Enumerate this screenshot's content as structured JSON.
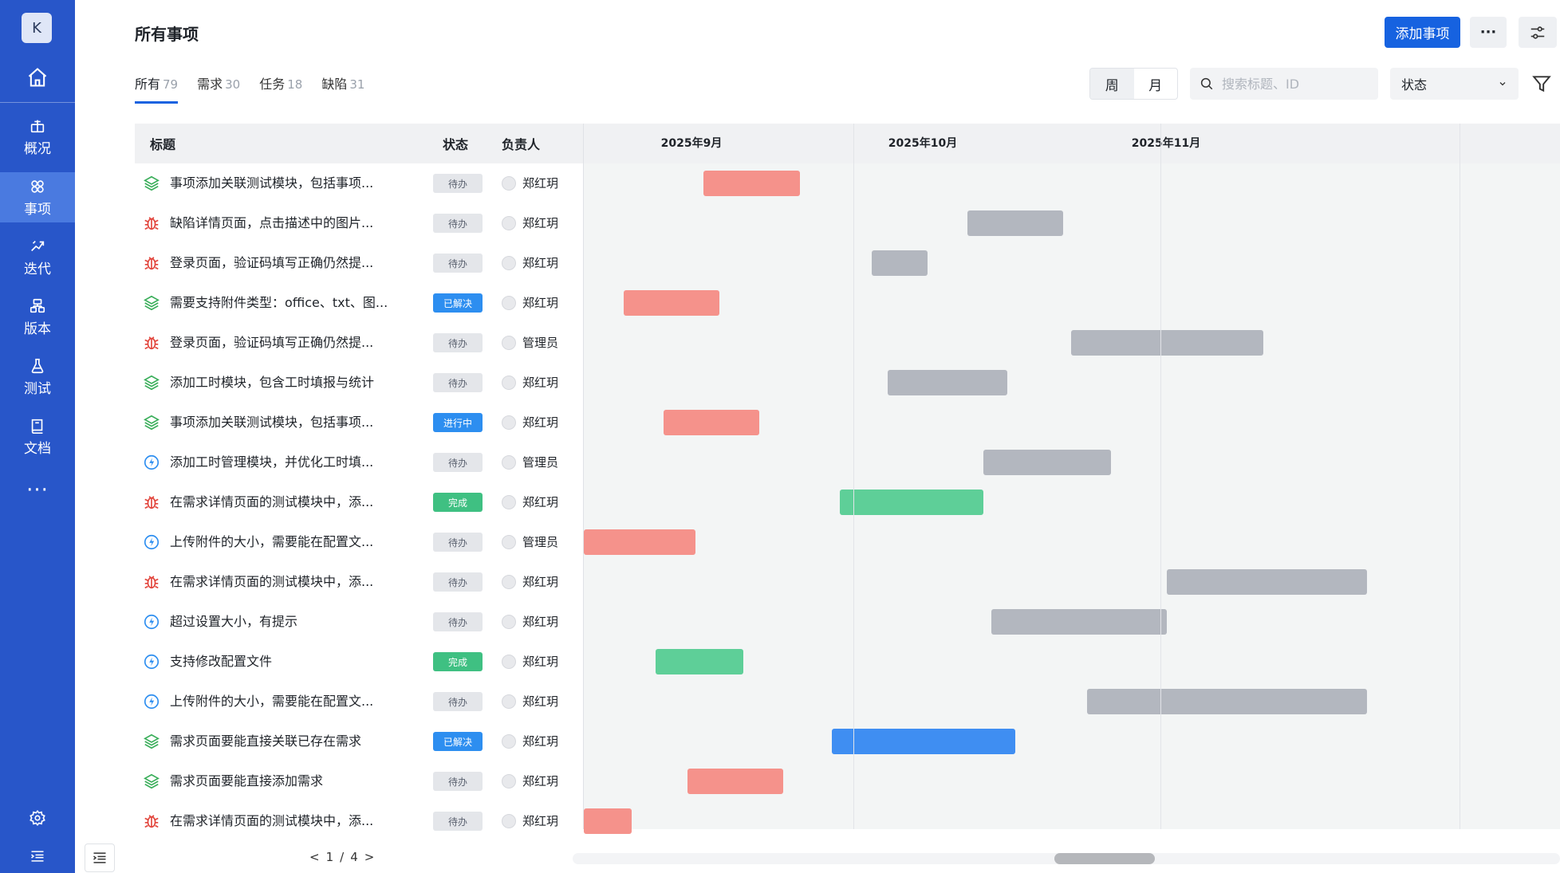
{
  "sidebar": {
    "avatar": "K",
    "items": [
      {
        "label": "概况",
        "icon": "overview-icon"
      },
      {
        "label": "事项",
        "icon": "items-icon"
      },
      {
        "label": "迭代",
        "icon": "sprint-icon"
      },
      {
        "label": "版本",
        "icon": "version-icon"
      },
      {
        "label": "测试",
        "icon": "flask-icon"
      },
      {
        "label": "文档",
        "icon": "book-icon"
      }
    ],
    "more": "···"
  },
  "header": {
    "title": "所有事项",
    "add_button": "添加事项",
    "more_button": "···"
  },
  "tabs": [
    {
      "label": "所有",
      "count": "79"
    },
    {
      "label": "需求",
      "count": "30"
    },
    {
      "label": "任务",
      "count": "18"
    },
    {
      "label": "缺陷",
      "count": "31"
    }
  ],
  "toolbar": {
    "week": "周",
    "month": "月",
    "search_placeholder": "搜索标题、ID",
    "status_select": "状态"
  },
  "table": {
    "columns": {
      "title": "标题",
      "status": "状态",
      "owner": "负责人"
    },
    "rows": [
      {
        "type": "requirement",
        "title": "事项添加关联测试模块，包括事项...",
        "status": "待办",
        "status_kind": "todo",
        "owner": "郑红玥"
      },
      {
        "type": "bug",
        "title": "缺陷详情页面，点击描述中的图片...",
        "status": "待办",
        "status_kind": "todo",
        "owner": "郑红玥"
      },
      {
        "type": "bug",
        "title": "登录页面，验证码填写正确仍然提...",
        "status": "待办",
        "status_kind": "todo",
        "owner": "郑红玥"
      },
      {
        "type": "requirement",
        "title": "需要支持附件类型：office、txt、图...",
        "status": "已解决",
        "status_kind": "resolved",
        "owner": "郑红玥"
      },
      {
        "type": "bug",
        "title": "登录页面，验证码填写正确仍然提...",
        "status": "待办",
        "status_kind": "todo",
        "owner": "管理员"
      },
      {
        "type": "requirement",
        "title": "添加工时模块，包含工时填报与统计",
        "status": "待办",
        "status_kind": "todo",
        "owner": "郑红玥"
      },
      {
        "type": "requirement",
        "title": "事项添加关联测试模块，包括事项...",
        "status": "进行中",
        "status_kind": "progress",
        "owner": "郑红玥"
      },
      {
        "type": "task",
        "title": "添加工时管理模块，并优化工时填...",
        "status": "待办",
        "status_kind": "todo",
        "owner": "管理员"
      },
      {
        "type": "bug",
        "title": "在需求详情页面的测试模块中，添...",
        "status": "完成",
        "status_kind": "done",
        "owner": "郑红玥"
      },
      {
        "type": "task",
        "title": "上传附件的大小，需要能在配置文...",
        "status": "待办",
        "status_kind": "todo",
        "owner": "管理员"
      },
      {
        "type": "bug",
        "title": "在需求详情页面的测试模块中，添...",
        "status": "待办",
        "status_kind": "todo",
        "owner": "郑红玥"
      },
      {
        "type": "task",
        "title": "超过设置大小，有提示",
        "status": "待办",
        "status_kind": "todo",
        "owner": "郑红玥"
      },
      {
        "type": "task",
        "title": "支持修改配置文件",
        "status": "完成",
        "status_kind": "done",
        "owner": "郑红玥"
      },
      {
        "type": "task",
        "title": "上传附件的大小，需要能在配置文...",
        "status": "待办",
        "status_kind": "todo",
        "owner": "郑红玥"
      },
      {
        "type": "requirement",
        "title": "需求页面要能直接关联已存在需求",
        "status": "已解决",
        "status_kind": "resolved",
        "owner": "郑红玥"
      },
      {
        "type": "requirement",
        "title": "需求页面要能直接添加需求",
        "status": "待办",
        "status_kind": "todo",
        "owner": "郑红玥"
      },
      {
        "type": "bug",
        "title": "在需求详情页面的测试模块中，添...",
        "status": "待办",
        "status_kind": "todo",
        "owner": "郑红玥"
      }
    ]
  },
  "gantt": {
    "months": [
      "2025年9月",
      "2025年10月",
      "2025年11月"
    ],
    "colors": {
      "red": "#f5928b",
      "gray": "#b3b7bf",
      "green": "#5ecf98",
      "blue": "#3f8ef2"
    },
    "bars": [
      {
        "start": "2025-09-04",
        "end": "2025-09-16",
        "color": "red"
      },
      {
        "start": "2025-10-07",
        "end": "2025-10-19",
        "color": "gray"
      },
      {
        "start": "2025-09-25",
        "end": "2025-10-02",
        "color": "gray"
      },
      {
        "start": "2025-08-25",
        "end": "2025-09-06",
        "color": "red"
      },
      {
        "start": "2025-10-20",
        "end": "2025-11-13",
        "color": "gray"
      },
      {
        "start": "2025-09-27",
        "end": "2025-10-12",
        "color": "gray"
      },
      {
        "start": "2025-08-30",
        "end": "2025-09-11",
        "color": "red"
      },
      {
        "start": "2025-10-09",
        "end": "2025-10-25",
        "color": "gray"
      },
      {
        "start": "2025-09-21",
        "end": "2025-10-09",
        "color": "green"
      },
      {
        "start": "2025-08-20",
        "end": "2025-09-03",
        "color": "red"
      },
      {
        "start": "2025-11-01",
        "end": "2025-11-26",
        "color": "gray"
      },
      {
        "start": "2025-10-10",
        "end": "2025-11-01",
        "color": "gray"
      },
      {
        "start": "2025-08-29",
        "end": "2025-09-09",
        "color": "green"
      },
      {
        "start": "2025-10-22",
        "end": "2025-11-26",
        "color": "gray"
      },
      {
        "start": "2025-09-20",
        "end": "2025-10-13",
        "color": "blue"
      },
      {
        "start": "2025-09-02",
        "end": "2025-09-14",
        "color": "red"
      },
      {
        "start": "2025-08-20",
        "end": "2025-08-26",
        "color": "red"
      }
    ]
  },
  "pagination": {
    "prev": "<",
    "current": "1",
    "sep": "/",
    "total": "4",
    "next": ">"
  }
}
